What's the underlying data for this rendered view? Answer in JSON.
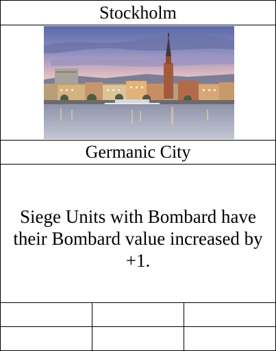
{
  "card": {
    "title": "Stockholm",
    "type_line": "Germanic City",
    "rules_text": "Siege Units with Bombard have their Bombard value increased by +1.",
    "art": {
      "subject": "Stockholm city skyline at dusk over water",
      "sky_color": "#7e86b8",
      "water_color": "#8f96a8"
    },
    "stats": [
      [
        "",
        "",
        ""
      ],
      [
        "",
        "",
        ""
      ]
    ]
  }
}
